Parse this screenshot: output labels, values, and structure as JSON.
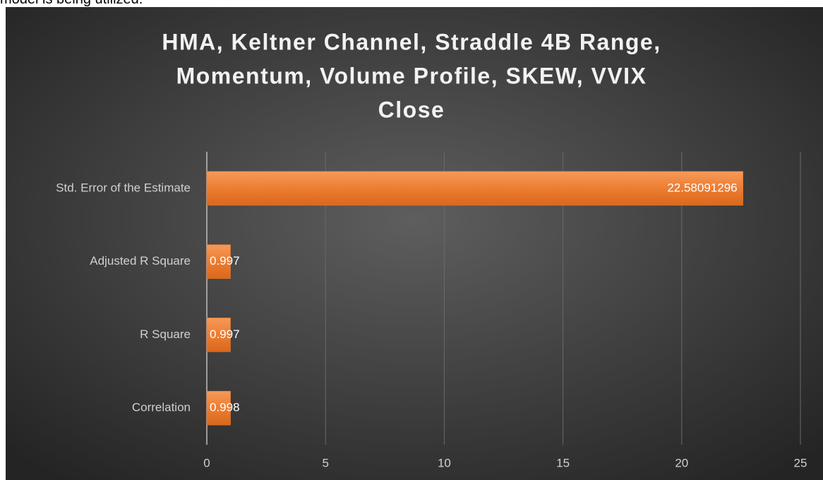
{
  "caption": "model is being utilized.",
  "chart_data": {
    "type": "bar",
    "orientation": "horizontal",
    "title": [
      "HMA, Keltner Channel, Straddle 4B Range,",
      "Momentum, Volume Profile, SKEW, VVIX",
      "Close"
    ],
    "categories": [
      "Correlation",
      "R Square",
      "Adjusted R Square",
      "Std. Error of the Estimate"
    ],
    "values": [
      0.998,
      0.997,
      0.997,
      22.58091296
    ],
    "color": "#ed7d31",
    "xlim": [
      0,
      25
    ],
    "xticks": [
      0,
      5,
      10,
      15,
      20,
      25
    ],
    "grid": true
  }
}
